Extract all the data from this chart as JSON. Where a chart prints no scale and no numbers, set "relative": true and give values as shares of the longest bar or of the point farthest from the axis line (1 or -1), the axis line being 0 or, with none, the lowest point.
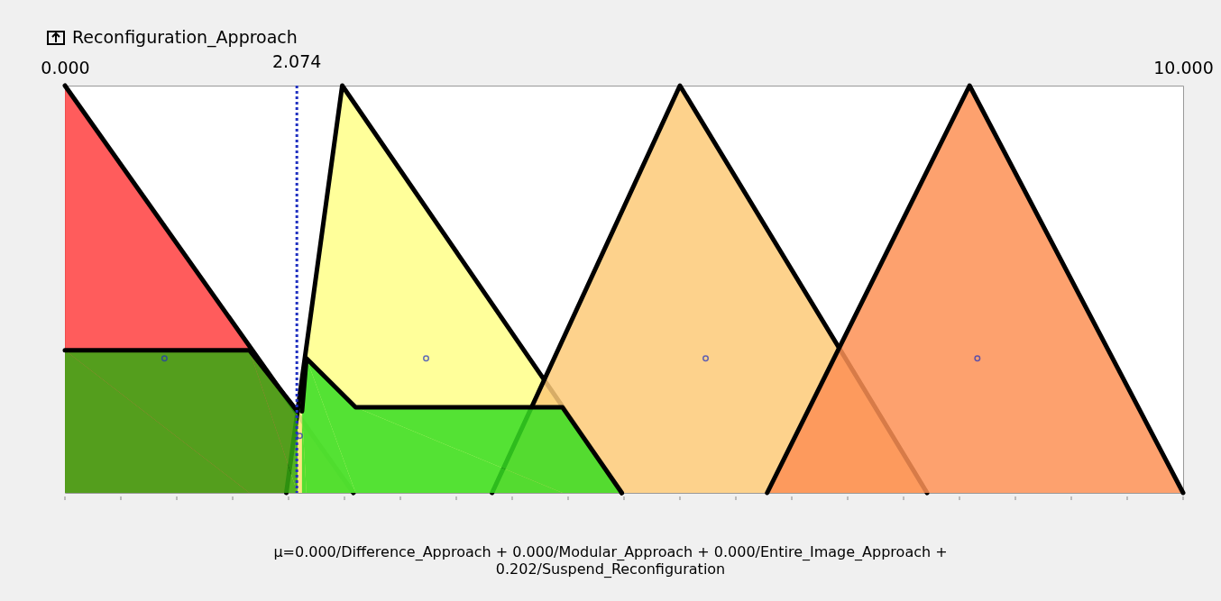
{
  "chart_data": {
    "type": "area",
    "title": "Reconfiguration_Approach",
    "relative": true,
    "grid": false,
    "xlim": [
      0,
      10
    ],
    "xticks": [
      {
        "value": 0,
        "label": "0.000"
      },
      {
        "value": 0.5,
        "label": null
      },
      {
        "value": 1,
        "label": null
      },
      {
        "value": 1.5,
        "label": null
      },
      {
        "value": 2,
        "label": null
      },
      {
        "value": 2.5,
        "label": null
      },
      {
        "value": 3,
        "label": null
      },
      {
        "value": 3.5,
        "label": null
      },
      {
        "value": 4,
        "label": null
      },
      {
        "value": 4.5,
        "label": null
      },
      {
        "value": 5,
        "label": null
      },
      {
        "value": 5.5,
        "label": null
      },
      {
        "value": 6,
        "label": null
      },
      {
        "value": 6.5,
        "label": null
      },
      {
        "value": 7,
        "label": null
      },
      {
        "value": 7.5,
        "label": null
      },
      {
        "value": 8,
        "label": null
      },
      {
        "value": 8.5,
        "label": null
      },
      {
        "value": 9,
        "label": null
      },
      {
        "value": 9.5,
        "label": null
      },
      {
        "value": 10,
        "label": "10.000"
      }
    ],
    "series": [
      {
        "color": "#ff4040",
        "x": [
          0,
          2.58
        ],
        "values": [
          1,
          0
        ]
      },
      {
        "color": "#ffff88",
        "x": [
          1.98,
          2.48,
          4.98
        ],
        "values": [
          0,
          1,
          0
        ]
      },
      {
        "color": "#fdca78",
        "x": [
          3.82,
          5.5,
          7.71
        ],
        "values": [
          0,
          1,
          0
        ]
      },
      {
        "color": "#fd9155",
        "x": [
          6.28,
          8.09,
          10
        ],
        "values": [
          0,
          1,
          0
        ]
      },
      {
        "color": "#36a912",
        "x": [
          0,
          1.65,
          2.08
        ],
        "values": [
          0.35,
          0.35,
          0.2
        ]
      },
      {
        "color": "#36dd22",
        "x": [
          2.12,
          2.16,
          2.6,
          4.45,
          4.98
        ],
        "values": [
          0.2,
          0.33,
          0.21,
          0.21,
          0
        ]
      },
      {
        "type": "scatter",
        "color": "#2030c0",
        "marker": "circle",
        "x": [
          0.89,
          2.1,
          3.23,
          5.73,
          8.16
        ],
        "values": [
          0.33,
          0.14,
          0.33,
          0.33,
          0.33
        ]
      }
    ],
    "ref_lines": [
      {
        "axis": "x",
        "value": 2.074,
        "label": "2.074",
        "color": "#2030c0",
        "line_style": "dotted"
      }
    ],
    "annotations": [
      "μ=0.000/Difference_Approach + 0.000/Modular_Approach + 0.000/Entire_Image_Approach + 0.202/Suspend_Reconfiguration"
    ]
  }
}
